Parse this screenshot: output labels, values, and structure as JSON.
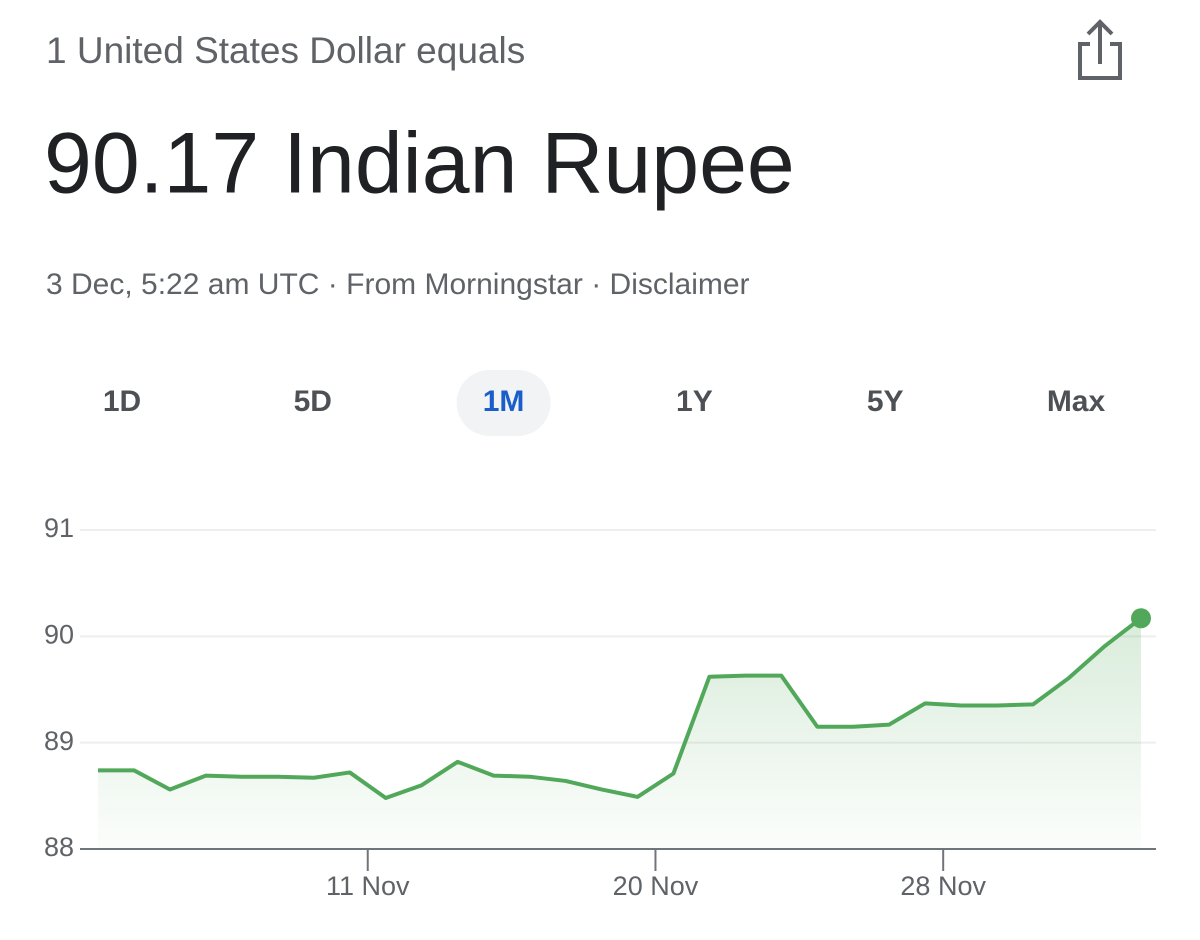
{
  "header": {
    "subtitle": "1 United States Dollar equals",
    "title": "90.17 Indian Rupee",
    "meta": {
      "time": "3 Dec, 5:22 am UTC",
      "separator": "·",
      "source": "From Morningstar",
      "disclaimer": "Disclaimer"
    }
  },
  "tabs": {
    "items": [
      "1D",
      "5D",
      "1M",
      "1Y",
      "5Y",
      "Max"
    ],
    "selected": "1M"
  },
  "chart_data": {
    "type": "line",
    "categories": [
      null,
      null,
      null,
      null,
      null,
      null,
      null,
      null,
      null,
      null,
      null,
      null,
      null,
      null,
      null,
      null,
      null,
      null,
      null,
      null,
      null,
      null,
      null,
      null,
      null,
      null,
      null,
      null,
      null,
      null
    ],
    "series": [
      {
        "color": "#52a85a",
        "values": [
          88.74,
          88.74,
          88.56,
          88.69,
          88.68,
          88.68,
          88.67,
          88.72,
          88.48,
          88.6,
          88.82,
          88.69,
          88.68,
          88.64,
          88.56,
          88.49,
          88.71,
          89.62,
          89.63,
          89.63,
          89.15,
          89.15,
          89.17,
          89.37,
          89.35,
          89.35,
          89.36,
          89.61,
          89.91,
          90.17
        ]
      }
    ],
    "xlim": [
      0,
      29
    ],
    "xticks": [
      {
        "value": 7.5,
        "label": "11 Nov"
      },
      {
        "value": 15.5,
        "label": "20 Nov"
      },
      {
        "value": 23.5,
        "label": "28 Nov"
      }
    ],
    "ylim": [
      88,
      91
    ],
    "yticks": [
      88,
      89,
      90,
      91
    ],
    "grid": true
  }
}
